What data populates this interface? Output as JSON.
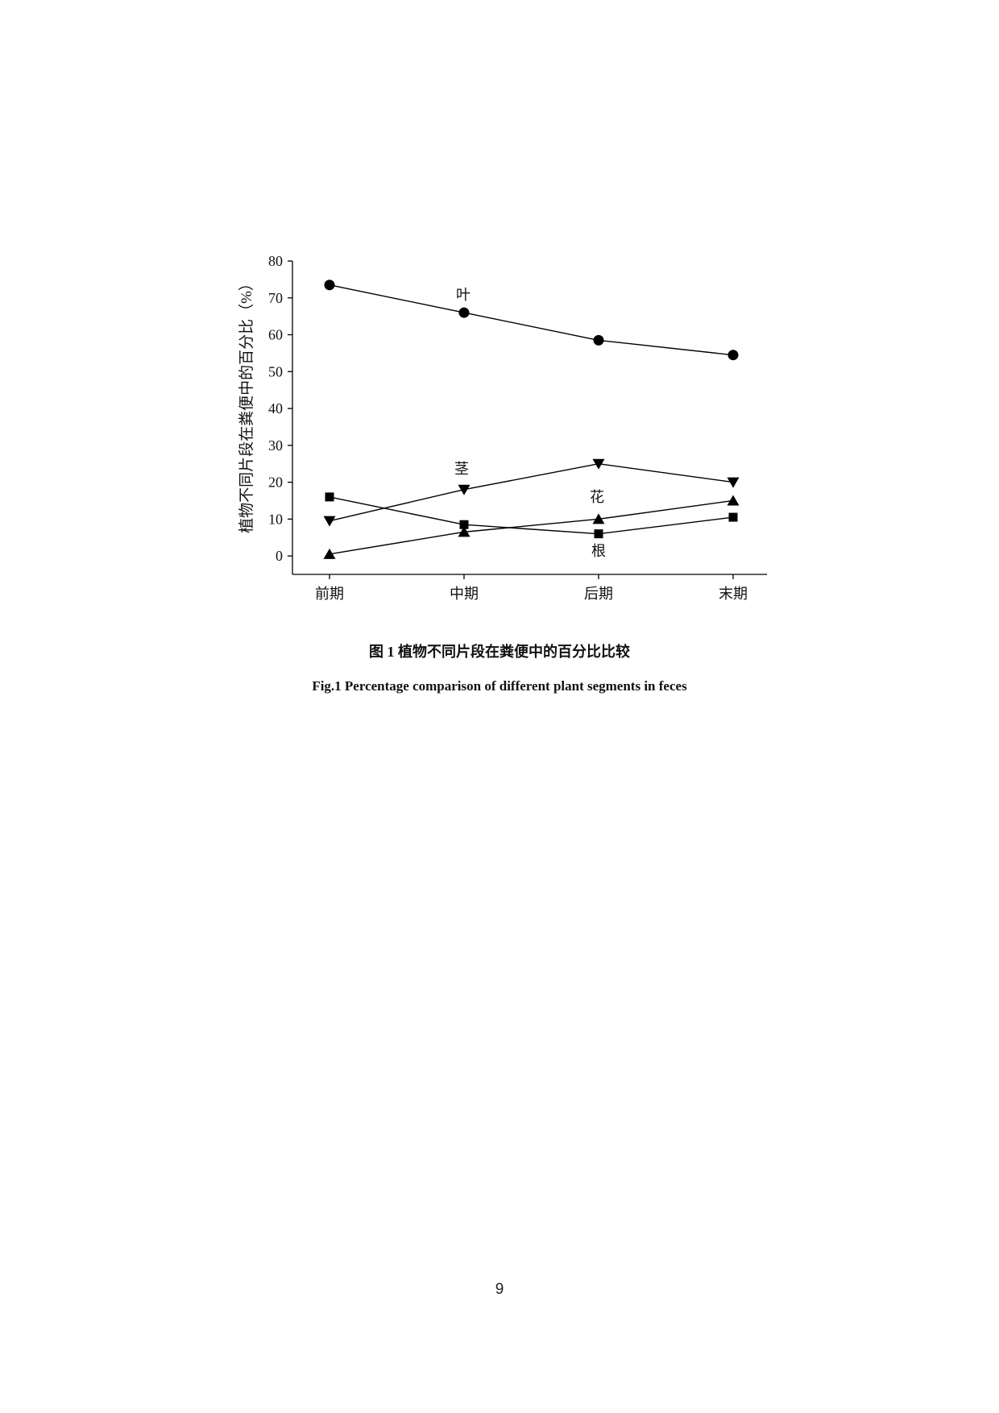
{
  "chart_data": {
    "type": "line",
    "y_label": "植物不同片段在粪便中的百分比（%）",
    "categories": [
      "前期",
      "中期",
      "后期",
      "末期"
    ],
    "series": [
      {
        "name": "叶",
        "color": "#000000",
        "marker": "circle",
        "values": [
          73.5,
          66,
          58.5,
          54.5
        ]
      },
      {
        "name": "茎",
        "color": "#000000",
        "marker": "triangle-down",
        "values": [
          9.5,
          18,
          25,
          20
        ]
      },
      {
        "name": "花",
        "color": "#000000",
        "marker": "triangle-up",
        "values": [
          0.5,
          6.5,
          10,
          15
        ]
      },
      {
        "name": "根",
        "color": "#000000",
        "marker": "square",
        "values": [
          16,
          8.5,
          6,
          10.5
        ]
      }
    ],
    "ylim": [
      -5,
      80
    ],
    "yticks": [
      0,
      10,
      20,
      30,
      40,
      50,
      60,
      70,
      80
    ],
    "grid": false
  },
  "caption_zh": "图 1 植物不同片段在粪便中的百分比比较",
  "caption_en": "Fig.1 Percentage comparison of different plant segments in feces",
  "page_number": "9"
}
